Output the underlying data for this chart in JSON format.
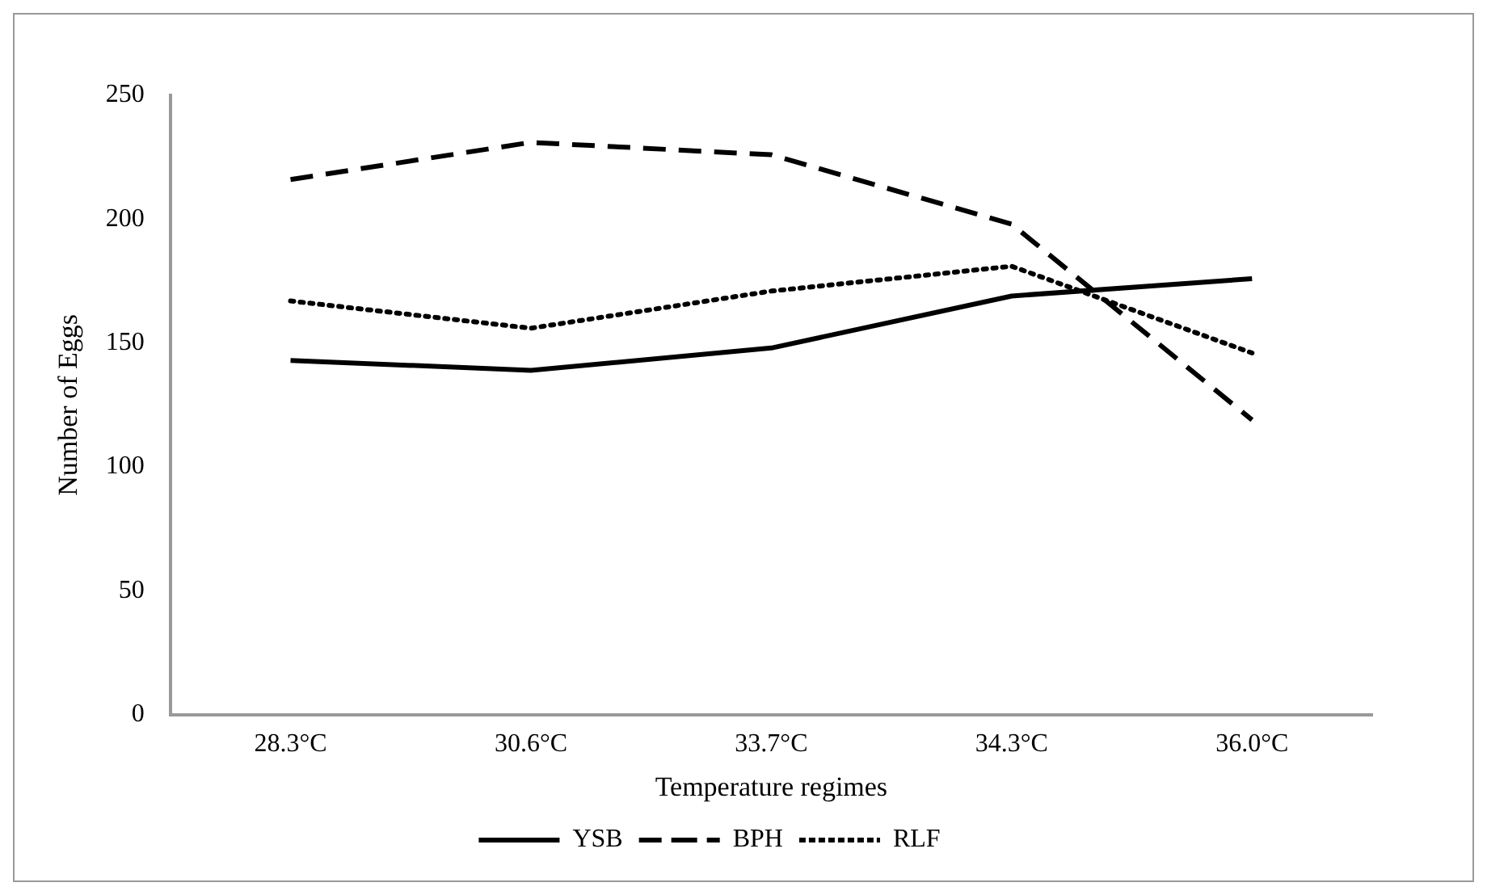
{
  "chart_data": {
    "type": "line",
    "xlabel": "Temperature regimes",
    "ylabel": "Number of Eggs",
    "categories": [
      "28.3°C",
      "30.6°C",
      "33.7°C",
      "34.3°C",
      "36.0°C"
    ],
    "series": [
      {
        "name": "YSB",
        "color": "#000000",
        "line_style": "solid",
        "values": [
          143,
          139,
          148,
          169,
          176
        ]
      },
      {
        "name": "BPH",
        "color": "#000000",
        "line_style": "dashed",
        "values": [
          216,
          231,
          226,
          198,
          119
        ]
      },
      {
        "name": "RLF",
        "color": "#000000",
        "line_style": "dotted",
        "values": [
          167,
          156,
          171,
          181,
          146
        ]
      }
    ],
    "ylim": [
      0,
      250
    ],
    "yticks": [
      0,
      50,
      100,
      150,
      200,
      250
    ],
    "grid": false,
    "legend": "bottom",
    "marker": "none"
  }
}
